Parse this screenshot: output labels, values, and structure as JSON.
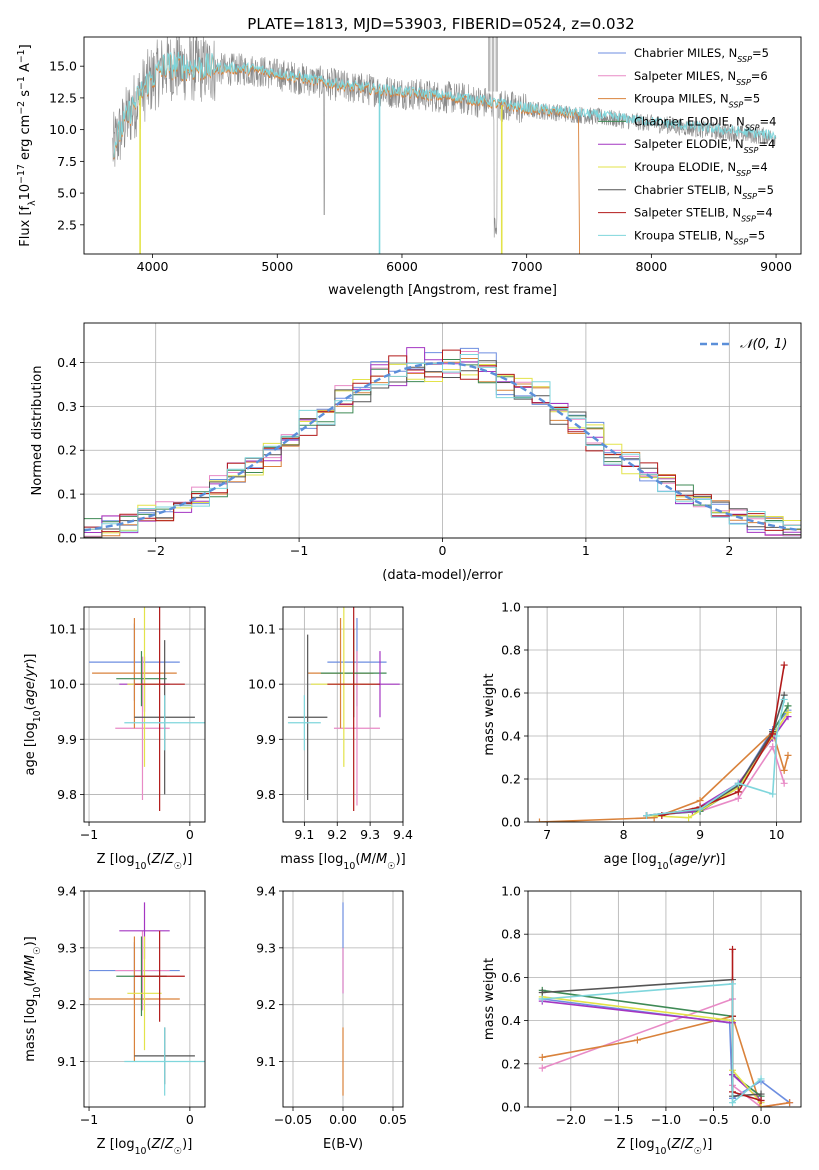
{
  "title": "PLATE=1813, MJD=53903, FIBERID=0524, z=0.032",
  "series": [
    {
      "name": "Chabrier MILES, N",
      "ssp": "SSP",
      "count": "=5",
      "color": "#6d8ee0"
    },
    {
      "name": "Salpeter MILES, N",
      "ssp": "SSP",
      "count": "=6",
      "color": "#e88ac6"
    },
    {
      "name": "Kroupa MILES, N",
      "ssp": "SSP",
      "count": "=5",
      "color": "#d9823b"
    },
    {
      "name": "Chabrier ELODIE, N",
      "ssp": "SSP",
      "count": "=4",
      "color": "#3f8a55"
    },
    {
      "name": "Salpeter ELODIE, N",
      "ssp": "SSP",
      "count": "=4",
      "color": "#a436c2"
    },
    {
      "name": "Kroupa ELODIE, N",
      "ssp": "SSP",
      "count": "=4",
      "color": "#e3e34a"
    },
    {
      "name": "Chabrier STELIB, N",
      "ssp": "SSP",
      "count": "=5",
      "color": "#555555"
    },
    {
      "name": "Salpeter STELIB, N",
      "ssp": "SSP",
      "count": "=4",
      "color": "#b21a1a"
    },
    {
      "name": "Kroupa STELIB, N",
      "ssp": "SSP",
      "count": "=5",
      "color": "#7fd6dc"
    }
  ],
  "chart_data": [
    {
      "type": "line",
      "xlabel": "wavelength [Angstrom, rest frame]",
      "ylabel": "Flux [f_λ 10^-17 erg cm^-2 s^-1 A^-1]",
      "xlim": [
        3450,
        9200
      ],
      "ylim": [
        0.2,
        17.3
      ],
      "xticks": [
        4000,
        5000,
        6000,
        7000,
        8000,
        9000
      ],
      "yticks": [
        2.5,
        5.0,
        7.5,
        10.0,
        12.5,
        15.0
      ],
      "spectrum_anchors": [
        [
          3680,
          8.5
        ],
        [
          3800,
          11.0
        ],
        [
          3950,
          13.5
        ],
        [
          4100,
          15.0
        ],
        [
          4400,
          14.8
        ],
        [
          4800,
          14.7
        ],
        [
          5200,
          14.0
        ],
        [
          5600,
          13.3
        ],
        [
          6000,
          12.9
        ],
        [
          6500,
          12.4
        ],
        [
          7000,
          11.6
        ],
        [
          7400,
          11.2
        ],
        [
          8000,
          10.5
        ],
        [
          8600,
          9.8
        ],
        [
          9000,
          9.4
        ]
      ],
      "legend": "top-right",
      "grid": false
    },
    {
      "type": "bar",
      "subtype": "step-histogram",
      "xlabel": "(data-model)/error",
      "ylabel": "Normed distribution",
      "xlim": [
        -2.5,
        2.5
      ],
      "ylim": [
        0,
        0.49
      ],
      "xticks": [
        -2,
        -1,
        0,
        1,
        2
      ],
      "yticks": [
        0.0,
        0.1,
        0.2,
        0.3,
        0.4
      ],
      "bin_width": 0.125,
      "legend_label": "𝒩(0, 1)",
      "grid": true,
      "legend": "top-right"
    },
    {
      "type": "scatter",
      "xlabel": "Z [log₁₀(Z/Z☉)]",
      "ylabel": "age  [log₁₀(age/yr)]",
      "xlim": [
        -1.05,
        0.15
      ],
      "ylim": [
        9.75,
        10.14
      ],
      "xticks": [
        -1,
        0
      ],
      "yticks": [
        9.8,
        9.9,
        10.0,
        10.1
      ],
      "points": [
        {
          "x": -0.55,
          "y": 10.04,
          "xerr": 0.45,
          "yerr": 0.07
        },
        {
          "x": -0.47,
          "y": 9.92,
          "xerr": 0.27,
          "yerr": 0.13
        },
        {
          "x": -0.55,
          "y": 10.02,
          "xerr": 0.42,
          "yerr": 0.1
        },
        {
          "x": -0.48,
          "y": 10.01,
          "xerr": 0.25,
          "yerr": 0.05
        },
        {
          "x": -0.45,
          "y": 10.0,
          "xerr": 0.25,
          "yerr": 0.05
        },
        {
          "x": -0.45,
          "y": 10.0,
          "xerr": 0.17,
          "yerr": 0.15
        },
        {
          "x": -0.25,
          "y": 9.94,
          "xerr": 0.3,
          "yerr": 0.14
        },
        {
          "x": -0.3,
          "y": 10.0,
          "xerr": 0.25,
          "yerr": 0.23
        },
        {
          "x": -0.25,
          "y": 9.93,
          "xerr": 0.4,
          "yerr": 0.05
        }
      ]
    },
    {
      "type": "scatter",
      "xlabel": "mass [log₁₀(M/M☉)]",
      "ylabel": "",
      "xlim": [
        9.035,
        9.4
      ],
      "ylim": [
        9.75,
        10.14
      ],
      "xticks": [
        9.1,
        9.2,
        9.3,
        9.4
      ],
      "yticks": [
        9.8,
        9.9,
        10.0,
        10.1
      ],
      "points": [
        {
          "x": 9.26,
          "y": 10.04,
          "xerr": 0.09,
          "yerr": 0.08
        },
        {
          "x": 9.26,
          "y": 9.92,
          "xerr": 0.07,
          "yerr": 0.14
        },
        {
          "x": 9.21,
          "y": 10.02,
          "xerr": 0.1,
          "yerr": 0.1
        },
        {
          "x": 9.25,
          "y": 10.02,
          "xerr": 0.1,
          "yerr": 0.08
        },
        {
          "x": 9.33,
          "y": 10.0,
          "xerr": 0.06,
          "yerr": 0.06
        },
        {
          "x": 9.22,
          "y": 10.0,
          "xerr": 0.1,
          "yerr": 0.15
        },
        {
          "x": 9.11,
          "y": 9.94,
          "xerr": 0.06,
          "yerr": 0.15
        },
        {
          "x": 9.25,
          "y": 10.0,
          "xerr": 0.08,
          "yerr": 0.23
        },
        {
          "x": 9.1,
          "y": 9.93,
          "xerr": 0.05,
          "yerr": 0.05
        }
      ]
    },
    {
      "type": "line",
      "xlabel": "age  [log₁₀(age/yr)]",
      "ylabel": "mass weight",
      "xlim": [
        6.75,
        10.32
      ],
      "ylim": [
        0,
        1
      ],
      "xticks": [
        7,
        8,
        9,
        10
      ],
      "yticks": [
        0.0,
        0.2,
        0.4,
        0.6,
        0.8,
        1.0
      ],
      "grid": true,
      "series": [
        {
          "x": [
            8.3,
            9.0,
            9.5,
            9.95,
            10.15
          ],
          "y": [
            0.03,
            0.06,
            0.17,
            0.43,
            0.52
          ]
        },
        {
          "x": [
            8.3,
            9.0,
            9.5,
            9.95,
            10.1
          ],
          "y": [
            0.03,
            0.05,
            0.11,
            0.35,
            0.18
          ]
        },
        {
          "x": [
            6.9,
            8.4,
            9.0,
            9.95,
            10.1,
            10.15
          ],
          "y": [
            0.0,
            0.02,
            0.1,
            0.42,
            0.24,
            0.31
          ]
        },
        {
          "x": [
            8.3,
            9.0,
            9.5,
            9.95,
            10.15
          ],
          "y": [
            0.03,
            0.05,
            0.16,
            0.42,
            0.54
          ]
        },
        {
          "x": [
            8.3,
            8.9,
            9.5,
            9.95,
            10.15
          ],
          "y": [
            0.03,
            0.05,
            0.18,
            0.39,
            0.49
          ]
        },
        {
          "x": [
            8.3,
            8.85,
            9.5,
            9.95,
            10.15
          ],
          "y": [
            0.03,
            0.02,
            0.16,
            0.4,
            0.51
          ]
        },
        {
          "x": [
            8.3,
            9.0,
            9.5,
            9.95,
            10.1
          ],
          "y": [
            0.03,
            0.06,
            0.17,
            0.42,
            0.59
          ]
        },
        {
          "x": [
            8.5,
            9.0,
            9.5,
            9.95,
            10.1
          ],
          "y": [
            0.03,
            0.07,
            0.14,
            0.41,
            0.73
          ]
        },
        {
          "x": [
            8.3,
            9.0,
            9.5,
            9.95,
            10.0,
            10.1
          ],
          "y": [
            0.03,
            0.06,
            0.18,
            0.13,
            0.4,
            0.57
          ]
        }
      ]
    },
    {
      "type": "scatter",
      "xlabel": "Z [log₁₀(Z/Z☉)]",
      "ylabel": "mass [log₁₀(M/M☉)]",
      "xlim": [
        -1.05,
        0.15
      ],
      "ylim": [
        9.02,
        9.4
      ],
      "xticks": [
        -1,
        0
      ],
      "yticks": [
        9.1,
        9.2,
        9.3,
        9.4
      ],
      "points": [
        {
          "x": -0.55,
          "y": 9.26,
          "xerr": 0.45,
          "yerr": 0.05
        },
        {
          "x": -0.47,
          "y": 9.26,
          "xerr": 0.27,
          "yerr": 0.07
        },
        {
          "x": -0.55,
          "y": 9.21,
          "xerr": 0.45,
          "yerr": 0.11
        },
        {
          "x": -0.48,
          "y": 9.25,
          "xerr": 0.25,
          "yerr": 0.07
        },
        {
          "x": -0.45,
          "y": 9.33,
          "xerr": 0.25,
          "yerr": 0.05
        },
        {
          "x": -0.45,
          "y": 9.22,
          "xerr": 0.17,
          "yerr": 0.1
        },
        {
          "x": -0.25,
          "y": 9.11,
          "xerr": 0.3,
          "yerr": 0.05
        },
        {
          "x": -0.3,
          "y": 9.25,
          "xerr": 0.25,
          "yerr": 0.08
        },
        {
          "x": -0.25,
          "y": 9.1,
          "xerr": 0.4,
          "yerr": 0.06
        }
      ]
    },
    {
      "type": "scatter",
      "xlabel": "E(B-V)",
      "ylabel": "",
      "xlim": [
        -0.06,
        0.06
      ],
      "ylim": [
        9.02,
        9.4
      ],
      "xticks": [
        -0.05,
        0.0,
        0.05
      ],
      "yticks": [
        9.1,
        9.2,
        9.3,
        9.4
      ],
      "points": [
        {
          "x": 0.0,
          "y": 9.3,
          "yerr": 0.08
        },
        {
          "x": 0.0,
          "y": 9.26,
          "yerr": 0.04
        },
        {
          "x": 0.0,
          "y": 9.1,
          "yerr": 0.06
        }
      ]
    },
    {
      "type": "line",
      "xlabel": "Z [log₁₀(Z/Z☉)]",
      "ylabel": "mass weight",
      "xlim": [
        -2.45,
        0.42
      ],
      "ylim": [
        0,
        1
      ],
      "xticks": [
        -2.0,
        -1.5,
        -1.0,
        -0.5,
        0.0
      ],
      "yticks": [
        0.0,
        0.2,
        0.4,
        0.6,
        0.8,
        1.0
      ],
      "grid": true,
      "series": [
        {
          "x": [
            -2.3,
            -0.33,
            -0.3,
            0.0,
            0.3
          ],
          "y": [
            0.5,
            0.39,
            0.04,
            0.12,
            0.02
          ]
        },
        {
          "x": [
            -2.3,
            -0.3,
            -0.3,
            0.0,
            0.3
          ],
          "y": [
            0.18,
            0.5,
            0.1,
            0.0,
            0.02
          ]
        },
        {
          "x": [
            -2.3,
            -1.3,
            -0.3,
            0.0,
            0.3
          ],
          "y": [
            0.23,
            0.31,
            0.42,
            0.0,
            0.02
          ]
        },
        {
          "x": [
            -2.3,
            -0.3,
            -0.3,
            0.0
          ],
          "y": [
            0.54,
            0.42,
            0.15,
            0.05
          ]
        },
        {
          "x": [
            -2.3,
            -0.3,
            -0.3,
            0.0
          ],
          "y": [
            0.49,
            0.39,
            0.15,
            0.03
          ]
        },
        {
          "x": [
            -2.3,
            -0.3,
            -0.3,
            0.0
          ],
          "y": [
            0.51,
            0.4,
            0.17,
            0.02
          ]
        },
        {
          "x": [
            -2.3,
            -0.3,
            -0.3,
            0.0
          ],
          "y": [
            0.53,
            0.59,
            0.05,
            0.06
          ]
        },
        {
          "x": [
            -0.3,
            -0.3,
            -0.3,
            0.0
          ],
          "y": [
            0.73,
            0.42,
            0.07,
            0.03
          ]
        },
        {
          "x": [
            -2.3,
            -0.3,
            -0.3,
            0.0
          ],
          "y": [
            0.5,
            0.57,
            0.02,
            0.13
          ]
        }
      ]
    }
  ]
}
